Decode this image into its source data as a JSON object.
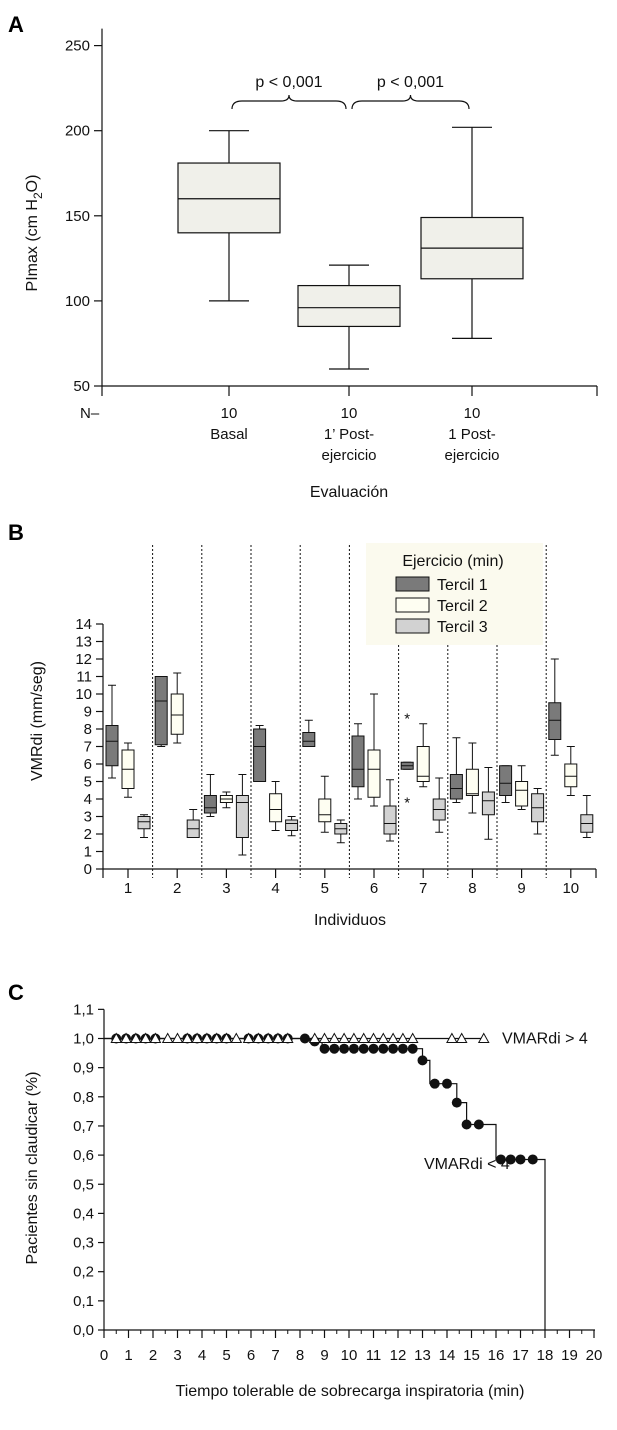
{
  "chart_data": [
    {
      "panel": "A",
      "type": "box",
      "ylabel": "PImax (cm H2O)",
      "ylabel_main": "PImax (cm H",
      "ylabel_sub": "2",
      "ylabel_end": "O)",
      "xlabel": "Evaluación",
      "ylim": [
        50,
        260
      ],
      "yticks": [
        50,
        100,
        150,
        200,
        250
      ],
      "n_label": "N–",
      "categories": [
        {
          "n": "10",
          "line1": "Basal",
          "line2": "",
          "min": 100,
          "q1": 140,
          "median": 160,
          "q3": 181,
          "max": 200
        },
        {
          "n": "10",
          "line1": "1’ Post-",
          "line2": "ejercicio",
          "min": 60,
          "q1": 85,
          "median": 96,
          "q3": 109,
          "max": 121
        },
        {
          "n": "10",
          "line1": "1 Post-",
          "line2": "ejercicio",
          "min": 78,
          "q1": 113,
          "median": 131,
          "q3": 149,
          "max": 202
        }
      ],
      "annotations": [
        {
          "text": "p < 0,001",
          "from": 0,
          "to": 1
        },
        {
          "text": "p < 0,001",
          "from": 1,
          "to": 2
        }
      ]
    },
    {
      "panel": "B",
      "type": "box",
      "ylabel": "VMRdi (mm/seg)",
      "xlabel": "Individuos",
      "ylim": [
        0,
        14
      ],
      "yticks": [
        0,
        1,
        2,
        3,
        4,
        5,
        6,
        7,
        8,
        9,
        10,
        11,
        12,
        13,
        14
      ],
      "categories": [
        "1",
        "2",
        "3",
        "4",
        "5",
        "6",
        "7",
        "8",
        "9",
        "10"
      ],
      "legend_title": "Ejercicio (min)",
      "series": [
        {
          "name": "Tercil 1",
          "color": "#7a7a7a",
          "boxes": [
            {
              "min": 5.2,
              "q1": 5.9,
              "median": 7.3,
              "q3": 8.2,
              "max": 10.5
            },
            {
              "min": 7.0,
              "q1": 7.1,
              "median": 9.6,
              "q3": 11.0,
              "max": 11.0
            },
            {
              "min": 3.0,
              "q1": 3.2,
              "median": 3.5,
              "q3": 4.2,
              "max": 5.4
            },
            {
              "min": 5.0,
              "q1": 5.0,
              "median": 7.0,
              "q3": 8.0,
              "max": 8.2
            },
            {
              "min": 7.0,
              "q1": 7.0,
              "median": 7.3,
              "q3": 7.8,
              "max": 8.5
            },
            {
              "min": 4.0,
              "q1": 4.7,
              "median": 5.7,
              "q3": 7.6,
              "max": 8.3
            },
            {
              "min": 5.7,
              "q1": 5.7,
              "median": 5.9,
              "q3": 6.1,
              "max": 6.1
            },
            {
              "min": 3.8,
              "q1": 4.0,
              "median": 4.6,
              "q3": 5.4,
              "max": 7.5
            },
            {
              "min": 3.8,
              "q1": 4.2,
              "median": 4.9,
              "q3": 5.9,
              "max": 5.9
            },
            {
              "min": 6.5,
              "q1": 7.4,
              "median": 8.5,
              "q3": 9.5,
              "max": 12.0
            }
          ]
        },
        {
          "name": "Tercil 2",
          "color": "#fefef2",
          "boxes": [
            {
              "min": 4.1,
              "q1": 4.6,
              "median": 5.7,
              "q3": 6.8,
              "max": 7.2
            },
            {
              "min": 7.2,
              "q1": 7.7,
              "median": 8.8,
              "q3": 10.0,
              "max": 11.2
            },
            {
              "min": 3.5,
              "q1": 3.8,
              "median": 4.0,
              "q3": 4.2,
              "max": 4.4
            },
            {
              "min": 2.2,
              "q1": 2.7,
              "median": 3.4,
              "q3": 4.3,
              "max": 5.0
            },
            {
              "min": 2.1,
              "q1": 2.7,
              "median": 3.1,
              "q3": 4.0,
              "max": 5.3
            },
            {
              "min": 3.6,
              "q1": 4.1,
              "median": 5.7,
              "q3": 6.8,
              "max": 10.0
            },
            {
              "min": 4.7,
              "q1": 5.0,
              "median": 5.3,
              "q3": 7.0,
              "max": 8.3
            },
            {
              "min": 3.2,
              "q1": 4.2,
              "median": 4.3,
              "q3": 5.7,
              "max": 7.2
            },
            {
              "min": 3.4,
              "q1": 3.6,
              "median": 4.5,
              "q3": 5.0,
              "max": 5.9
            },
            {
              "min": 4.2,
              "q1": 4.7,
              "median": 5.3,
              "q3": 6.0,
              "max": 7.0
            }
          ]
        },
        {
          "name": "Tercil 3",
          "color": "#d2d2d2",
          "boxes": [
            {
              "min": 1.8,
              "q1": 2.3,
              "median": 2.7,
              "q3": 3.0,
              "max": 3.1
            },
            {
              "min": 1.8,
              "q1": 1.8,
              "median": 2.3,
              "q3": 2.8,
              "max": 3.4
            },
            {
              "min": 0.8,
              "q1": 1.8,
              "median": 3.8,
              "q3": 4.2,
              "max": 5.4
            },
            {
              "min": 1.9,
              "q1": 2.2,
              "median": 2.6,
              "q3": 2.8,
              "max": 3.0
            },
            {
              "min": 1.5,
              "q1": 2.0,
              "median": 2.3,
              "q3": 2.6,
              "max": 2.8
            },
            {
              "min": 1.6,
              "q1": 2.0,
              "median": 2.6,
              "q3": 3.6,
              "max": 5.1
            },
            {
              "min": 2.1,
              "q1": 2.8,
              "median": 3.4,
              "q3": 4.0,
              "max": 5.2
            },
            {
              "min": 1.7,
              "q1": 3.1,
              "median": 3.9,
              "q3": 4.4,
              "max": 5.8
            },
            {
              "min": 2.0,
              "q1": 2.7,
              "median": 3.5,
              "q3": 4.3,
              "max": 4.6
            },
            {
              "min": 1.8,
              "q1": 2.1,
              "median": 2.6,
              "q3": 3.1,
              "max": 4.2
            }
          ]
        }
      ],
      "outliers": [
        {
          "individual": 7,
          "series": 0,
          "value": 8.6,
          "mark": "*"
        },
        {
          "individual": 7,
          "series": 0,
          "value": 3.8,
          "mark": "*"
        }
      ]
    },
    {
      "panel": "C",
      "type": "step",
      "ylabel": "Pacientes sin claudicar (%)",
      "xlabel": "Tiempo tolerable de sobrecarga inspiratoria (min)",
      "xlim": [
        0,
        20
      ],
      "xticks": [
        0,
        1,
        2,
        3,
        4,
        5,
        6,
        7,
        8,
        9,
        10,
        11,
        12,
        13,
        14,
        15,
        16,
        17,
        18,
        19,
        20
      ],
      "xtick_labels": [
        "0",
        "1",
        "2",
        "3",
        "4",
        "5",
        "6",
        "7",
        "8",
        "9",
        "10",
        "11",
        "12",
        "13",
        "14",
        "15",
        "16",
        "17",
        "18",
        "19",
        "20"
      ],
      "ylim": [
        0,
        1.1
      ],
      "yticks": [
        "0,0",
        "0,1",
        "0,2",
        "0,3",
        "0,4",
        "0,5",
        "0,6",
        "0,7",
        "0,8",
        "0,9",
        "1,0",
        "1,1"
      ],
      "series": [
        {
          "name": "VMARdi > 4",
          "marker": "triangle",
          "steps": [
            [
              0,
              1.0
            ],
            [
              15.5,
              1.0
            ]
          ],
          "points": [
            0.5,
            0.9,
            1.3,
            1.7,
            2.1,
            2.6,
            3.0,
            3.4,
            3.8,
            4.2,
            4.6,
            5.0,
            5.4,
            5.9,
            6.3,
            6.7,
            7.1,
            7.5,
            8.6,
            9.0,
            9.4,
            9.8,
            10.2,
            10.6,
            11.0,
            11.4,
            11.8,
            12.2,
            12.6,
            14.2,
            14.6,
            15.5
          ]
        },
        {
          "name": "VMARdi < 4",
          "marker": "circle",
          "steps": [
            [
              0,
              1.0
            ],
            [
              8.4,
              1.0
            ],
            [
              8.4,
              0.99
            ],
            [
              8.9,
              0.99
            ],
            [
              8.9,
              0.965
            ],
            [
              13.0,
              0.965
            ],
            [
              13.0,
              0.925
            ],
            [
              13.3,
              0.925
            ],
            [
              13.3,
              0.845
            ],
            [
              14.4,
              0.845
            ],
            [
              14.4,
              0.78
            ],
            [
              14.8,
              0.78
            ],
            [
              14.8,
              0.705
            ],
            [
              16.0,
              0.705
            ],
            [
              16.0,
              0.585
            ],
            [
              18.0,
              0.585
            ],
            [
              18.0,
              0.0
            ]
          ],
          "points": [
            [
              0.5,
              1.0
            ],
            [
              0.9,
              1.0
            ],
            [
              1.3,
              1.0
            ],
            [
              1.7,
              1.0
            ],
            [
              2.1,
              1.0
            ],
            [
              3.4,
              1.0
            ],
            [
              3.8,
              1.0
            ],
            [
              4.2,
              1.0
            ],
            [
              4.6,
              1.0
            ],
            [
              5.0,
              1.0
            ],
            [
              5.9,
              1.0
            ],
            [
              6.3,
              1.0
            ],
            [
              6.7,
              1.0
            ],
            [
              7.1,
              1.0
            ],
            [
              7.5,
              1.0
            ],
            [
              8.2,
              1.0
            ],
            [
              8.6,
              0.99
            ],
            [
              9.0,
              0.965
            ],
            [
              9.4,
              0.965
            ],
            [
              9.8,
              0.965
            ],
            [
              10.2,
              0.965
            ],
            [
              10.6,
              0.965
            ],
            [
              11.0,
              0.965
            ],
            [
              11.4,
              0.965
            ],
            [
              11.8,
              0.965
            ],
            [
              12.2,
              0.965
            ],
            [
              12.6,
              0.965
            ],
            [
              13.0,
              0.925
            ],
            [
              13.5,
              0.845
            ],
            [
              14.0,
              0.845
            ],
            [
              14.4,
              0.78
            ],
            [
              14.8,
              0.705
            ],
            [
              15.3,
              0.705
            ],
            [
              16.2,
              0.585
            ],
            [
              16.6,
              0.585
            ],
            [
              17.0,
              0.585
            ],
            [
              17.5,
              0.585
            ]
          ]
        }
      ]
    }
  ]
}
